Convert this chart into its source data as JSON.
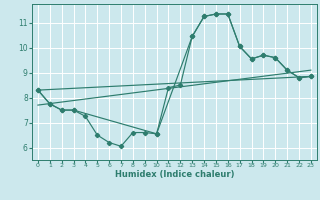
{
  "xlabel": "Humidex (Indice chaleur)",
  "bg_color": "#cce8ed",
  "grid_color": "#ffffff",
  "line_color": "#2e7d6e",
  "xlim": [
    -0.5,
    23.5
  ],
  "ylim": [
    5.5,
    11.75
  ],
  "yticks": [
    6,
    7,
    8,
    9,
    10,
    11
  ],
  "xticks": [
    0,
    1,
    2,
    3,
    4,
    5,
    6,
    7,
    8,
    9,
    10,
    11,
    12,
    13,
    14,
    15,
    16,
    17,
    18,
    19,
    20,
    21,
    22,
    23
  ],
  "series1_x": [
    0,
    1,
    2,
    3,
    4,
    5,
    6,
    7,
    8,
    9,
    10,
    11,
    12,
    13,
    14,
    15,
    16,
    17,
    18,
    19,
    20,
    21,
    22,
    23
  ],
  "series1_y": [
    8.3,
    7.75,
    7.5,
    7.5,
    7.25,
    6.5,
    6.2,
    6.05,
    6.6,
    6.6,
    6.55,
    8.4,
    8.5,
    10.45,
    11.25,
    11.35,
    11.35,
    10.05,
    9.55,
    9.7,
    9.6,
    9.1,
    8.8,
    8.85
  ],
  "series2_x": [
    0,
    1,
    2,
    3,
    10,
    13,
    14,
    15,
    16,
    17,
    18,
    19,
    20,
    21,
    22,
    23
  ],
  "series2_y": [
    8.3,
    7.75,
    7.5,
    7.5,
    6.55,
    10.45,
    11.25,
    11.35,
    11.35,
    10.05,
    9.55,
    9.7,
    9.6,
    9.1,
    8.8,
    8.85
  ],
  "trend1_x": [
    0,
    23
  ],
  "trend1_y": [
    7.7,
    9.1
  ],
  "trend2_x": [
    0,
    23
  ],
  "trend2_y": [
    8.3,
    8.85
  ]
}
